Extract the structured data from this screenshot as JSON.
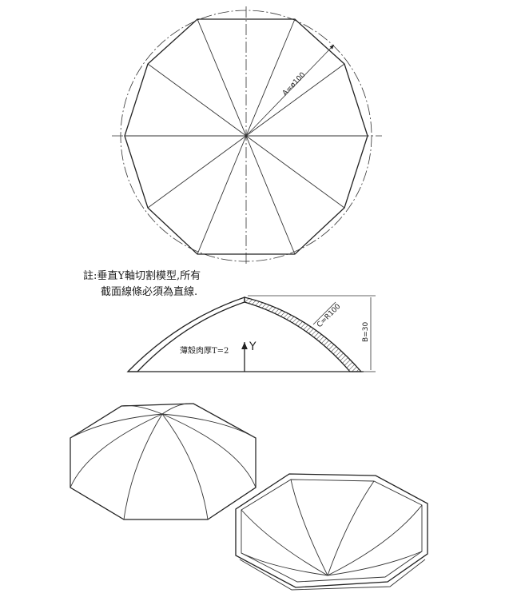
{
  "note": {
    "line1": "註:垂直Y軸切割模型,所有",
    "line2": "截面線條必須為直線."
  },
  "dimensions": {
    "diameter": "A=ø100",
    "radius": "C=R100",
    "height": "B=30",
    "thickness": "薄殼肉厚T=2"
  },
  "axis": {
    "y_label": "Y"
  }
}
